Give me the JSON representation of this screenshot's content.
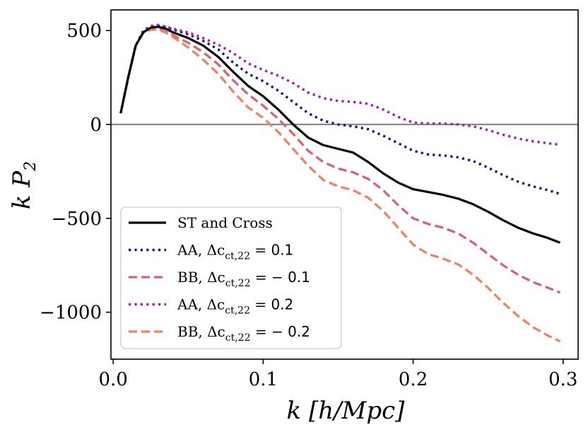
{
  "chart_data": {
    "type": "line",
    "xlabel": "k [h/Mpc]",
    "ylabel": "k P_2",
    "xlim": [
      -0.0015,
      0.31
    ],
    "ylim": [
      -1250,
      610
    ],
    "xticks": [
      0.0,
      0.1,
      0.2,
      0.3
    ],
    "xtick_labels": [
      "0.0",
      "0.1",
      "0.2",
      "0.3"
    ],
    "yticks": [
      500,
      0,
      -500,
      -1000
    ],
    "ytick_labels": [
      "500",
      "0",
      "−500",
      "−1000"
    ],
    "hline": {
      "y": 0,
      "color": "#888888"
    },
    "legend_position": "lower-left",
    "series": [
      {
        "name": "ST and Cross",
        "color": "#000000",
        "style": "solid",
        "x": [
          0.005,
          0.01,
          0.015,
          0.02,
          0.025,
          0.03,
          0.035,
          0.04,
          0.05,
          0.06,
          0.07,
          0.08,
          0.09,
          0.1,
          0.11,
          0.12,
          0.13,
          0.14,
          0.15,
          0.16,
          0.17,
          0.18,
          0.19,
          0.2,
          0.21,
          0.22,
          0.23,
          0.24,
          0.25,
          0.26,
          0.27,
          0.28,
          0.29,
          0.298
        ],
        "y": [
          60,
          250,
          420,
          490,
          515,
          520,
          510,
          490,
          460,
          420,
          360,
          280,
          205,
          150,
          80,
          0,
          -70,
          -110,
          -130,
          -150,
          -200,
          -260,
          -310,
          -345,
          -360,
          -375,
          -395,
          -425,
          -465,
          -510,
          -550,
          -580,
          -605,
          -630
        ]
      },
      {
        "name": "AA, Δc_ct,22 = 0.1",
        "color": "#14148a",
        "style": "dotted",
        "x": [
          0.005,
          0.01,
          0.015,
          0.02,
          0.025,
          0.03,
          0.035,
          0.04,
          0.05,
          0.06,
          0.07,
          0.08,
          0.09,
          0.1,
          0.11,
          0.12,
          0.13,
          0.14,
          0.15,
          0.16,
          0.17,
          0.18,
          0.19,
          0.2,
          0.21,
          0.22,
          0.23,
          0.24,
          0.25,
          0.26,
          0.27,
          0.28,
          0.29,
          0.298
        ],
        "y": [
          60,
          250,
          420,
          495,
          520,
          525,
          520,
          505,
          480,
          445,
          400,
          330,
          270,
          230,
          180,
          120,
          60,
          20,
          0,
          -10,
          -25,
          -60,
          -100,
          -140,
          -160,
          -165,
          -175,
          -195,
          -230,
          -270,
          -305,
          -330,
          -350,
          -370
        ]
      },
      {
        "name": "BB, Δc_ct,22 = − 0.1",
        "color": "#d95f75",
        "style": "dashed",
        "x": [
          0.005,
          0.01,
          0.015,
          0.02,
          0.025,
          0.03,
          0.035,
          0.04,
          0.05,
          0.06,
          0.07,
          0.08,
          0.09,
          0.1,
          0.11,
          0.12,
          0.13,
          0.14,
          0.15,
          0.16,
          0.17,
          0.18,
          0.19,
          0.2,
          0.21,
          0.22,
          0.23,
          0.24,
          0.25,
          0.26,
          0.27,
          0.28,
          0.29,
          0.298
        ],
        "y": [
          60,
          250,
          420,
          490,
          510,
          510,
          495,
          475,
          435,
          385,
          320,
          235,
          160,
          100,
          30,
          -50,
          -140,
          -200,
          -235,
          -255,
          -290,
          -350,
          -430,
          -500,
          -530,
          -550,
          -580,
          -630,
          -690,
          -750,
          -800,
          -840,
          -870,
          -895
        ]
      },
      {
        "name": "AA, Δc_ct,22 = 0.2",
        "color": "#a11fa8",
        "style": "dotted",
        "x": [
          0.005,
          0.01,
          0.015,
          0.02,
          0.025,
          0.03,
          0.035,
          0.04,
          0.05,
          0.06,
          0.07,
          0.08,
          0.09,
          0.1,
          0.11,
          0.12,
          0.13,
          0.14,
          0.15,
          0.16,
          0.17,
          0.18,
          0.19,
          0.2,
          0.21,
          0.22,
          0.23,
          0.24,
          0.25,
          0.26,
          0.27,
          0.28,
          0.29,
          0.298
        ],
        "y": [
          60,
          250,
          420,
          500,
          525,
          530,
          520,
          510,
          490,
          460,
          425,
          380,
          325,
          290,
          260,
          220,
          170,
          140,
          125,
          120,
          110,
          80,
          40,
          10,
          5,
          5,
          0,
          -10,
          -30,
          -55,
          -75,
          -90,
          -100,
          -108
        ]
      },
      {
        "name": "BB, Δc_ct,22 = − 0.2",
        "color": "#f2805e",
        "style": "dashed",
        "x": [
          0.005,
          0.01,
          0.015,
          0.02,
          0.025,
          0.03,
          0.035,
          0.04,
          0.05,
          0.06,
          0.07,
          0.08,
          0.09,
          0.1,
          0.11,
          0.12,
          0.13,
          0.14,
          0.15,
          0.16,
          0.17,
          0.18,
          0.19,
          0.2,
          0.21,
          0.22,
          0.23,
          0.24,
          0.25,
          0.26,
          0.27,
          0.28,
          0.29,
          0.298
        ],
        "y": [
          60,
          250,
          420,
          485,
          505,
          505,
          490,
          465,
          410,
          345,
          270,
          175,
          90,
          35,
          -40,
          -130,
          -220,
          -295,
          -330,
          -350,
          -390,
          -460,
          -550,
          -640,
          -690,
          -715,
          -745,
          -800,
          -870,
          -950,
          -1020,
          -1080,
          -1125,
          -1155
        ]
      }
    ],
    "legend": [
      {
        "prefix": "ST and Cross",
        "sub": "",
        "suffix": "",
        "value": ""
      },
      {
        "prefix": "AA, Δc",
        "sub": "ct,22",
        "suffix": " = ",
        "value": "0.1"
      },
      {
        "prefix": "BB, Δc",
        "sub": "ct,22",
        "suffix": " = − ",
        "value": "0.1"
      },
      {
        "prefix": "AA, Δc",
        "sub": "ct,22",
        "suffix": " = ",
        "value": "0.2"
      },
      {
        "prefix": "BB, Δc",
        "sub": "ct,22",
        "suffix": " = − ",
        "value": "0.2"
      }
    ]
  }
}
